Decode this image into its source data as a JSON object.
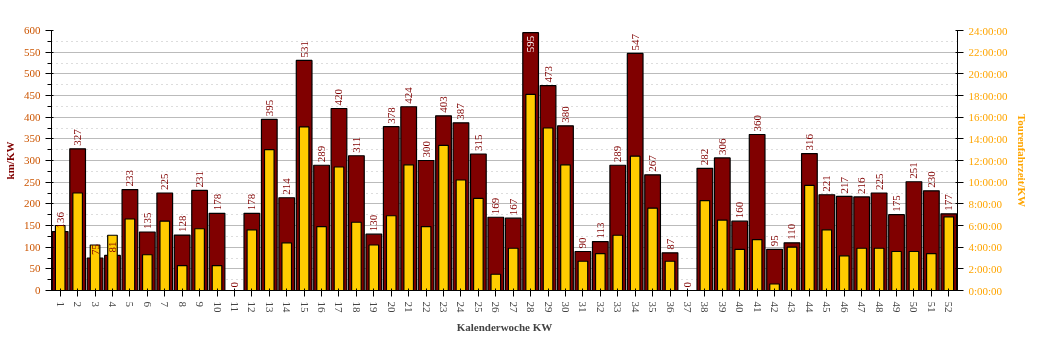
{
  "chart_data": {
    "type": "bar",
    "xlabel": "Kalenderwoche KW",
    "ylabel": "km/KW",
    "y2label": "Tourenfahrzeit/KW",
    "categories": [
      "1",
      "2",
      "3",
      "4",
      "5",
      "6",
      "7",
      "8",
      "9",
      "10",
      "11",
      "12",
      "13",
      "14",
      "15",
      "16",
      "17",
      "18",
      "19",
      "20",
      "21",
      "22",
      "23",
      "24",
      "25",
      "26",
      "27",
      "28",
      "29",
      "30",
      "31",
      "32",
      "33",
      "34",
      "35",
      "36",
      "37",
      "38",
      "39",
      "40",
      "41",
      "42",
      "43",
      "44",
      "45",
      "46",
      "47",
      "48",
      "49",
      "50",
      "51",
      "52"
    ],
    "series": [
      {
        "color": "#800000",
        "data_labels": true,
        "values": [
          136,
          327,
          75,
          81,
          233,
          135,
          225,
          128,
          231,
          178,
          0,
          178,
          395,
          214,
          531,
          289,
          420,
          311,
          130,
          378,
          424,
          300,
          403,
          387,
          315,
          169,
          167,
          595,
          473,
          380,
          90,
          113,
          289,
          547,
          267,
          87,
          0,
          282,
          306,
          160,
          360,
          95,
          110,
          316,
          221,
          217,
          216,
          225,
          175,
          251,
          230,
          177
        ]
      },
      {
        "color": "#ffcc00",
        "axis": "y2",
        "values": [
          6.0,
          9.0,
          4.2,
          5.1,
          6.6,
          3.3,
          6.4,
          2.3,
          5.7,
          2.3,
          null,
          5.6,
          13.0,
          4.4,
          15.1,
          5.9,
          11.4,
          6.3,
          4.2,
          6.9,
          11.6,
          5.9,
          13.4,
          10.2,
          8.5,
          1.5,
          3.9,
          18.1,
          15.0,
          11.6,
          2.7,
          3.4,
          5.1,
          12.4,
          7.6,
          2.7,
          null,
          8.3,
          6.5,
          3.8,
          4.7,
          0.6,
          4.0,
          9.7,
          5.6,
          3.2,
          3.9,
          3.9,
          3.6,
          3.6,
          3.4,
          6.8
        ]
      }
    ],
    "ylim": [
      0,
      600
    ],
    "yticks": [
      0,
      {
        "value": 25,
        "label": null
      },
      50,
      {
        "value": 75,
        "label": null
      },
      100,
      {
        "value": 125,
        "label": null
      },
      150,
      {
        "value": 175,
        "label": null
      },
      200,
      {
        "value": 225,
        "label": null
      },
      250,
      {
        "value": 275,
        "label": null
      },
      300,
      {
        "value": 325,
        "label": null
      },
      350,
      {
        "value": 375,
        "label": null
      },
      400,
      {
        "value": 425,
        "label": null
      },
      450,
      {
        "value": 475,
        "label": null
      },
      500,
      {
        "value": 525,
        "label": null
      },
      550,
      {
        "value": 575,
        "label": null
      },
      600
    ],
    "y2lim": [
      0,
      24
    ],
    "y2ticks": [
      {
        "value": 0,
        "label": "0:00:00"
      },
      {
        "value": 2,
        "label": "2:00:00"
      },
      {
        "value": 4,
        "label": "4:00:00"
      },
      {
        "value": 6,
        "label": "6:00:00"
      },
      {
        "value": 8,
        "label": "8:00:00"
      },
      {
        "value": 10,
        "label": "10:00:00"
      },
      {
        "value": 12,
        "label": "12:00:00"
      },
      {
        "value": 14,
        "label": "14:00:00"
      },
      {
        "value": 16,
        "label": "16:00:00"
      },
      {
        "value": 18,
        "label": "18:00:00"
      },
      {
        "value": 20,
        "label": "20:00:00"
      },
      {
        "value": 22,
        "label": "22:00:00"
      },
      {
        "value": 24,
        "label": "24:00:00"
      }
    ],
    "grid": "y"
  }
}
